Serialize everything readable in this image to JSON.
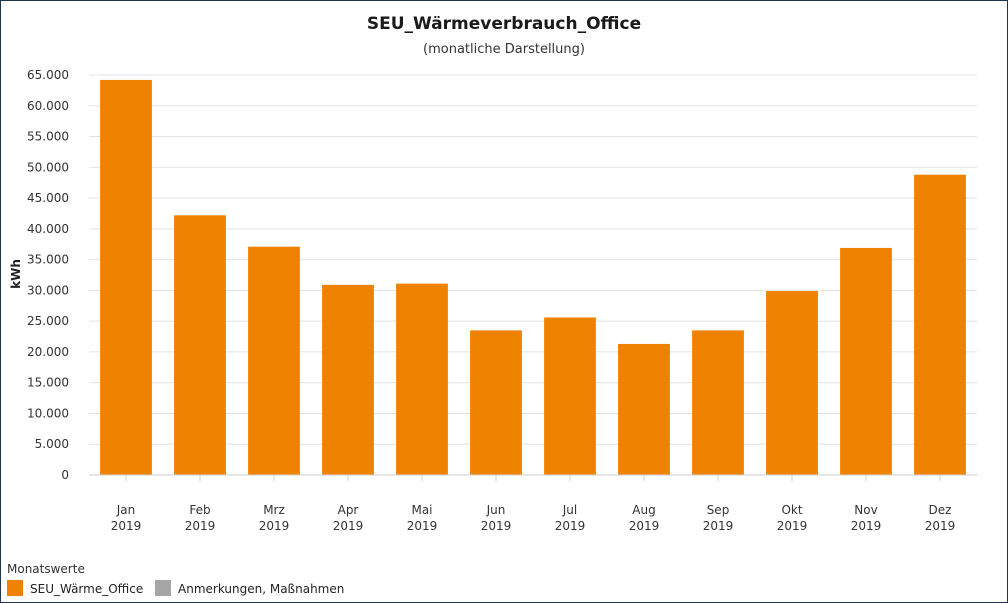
{
  "chart_data": {
    "type": "bar",
    "title": "SEU_Wärmeverbrauch_Office",
    "subtitle": "(monatliche Darstellung)",
    "ylabel": "kWh",
    "xlabel": "",
    "ylim": [
      0,
      65000
    ],
    "ytick_values": [
      0,
      5000,
      10000,
      15000,
      20000,
      25000,
      30000,
      35000,
      40000,
      45000,
      50000,
      55000,
      60000,
      65000
    ],
    "ytick_labels": [
      "0",
      "5.000",
      "10.000",
      "15.000",
      "20.000",
      "25.000",
      "30.000",
      "35.000",
      "40.000",
      "45.000",
      "50.000",
      "55.000",
      "60.000",
      "65.000"
    ],
    "categories": [
      "Jan",
      "Feb",
      "Mrz",
      "Apr",
      "Mai",
      "Jun",
      "Jul",
      "Aug",
      "Sep",
      "Okt",
      "Nov",
      "Dez"
    ],
    "category_year": "2019",
    "grid": true,
    "series": [
      {
        "name": "SEU_Wärme_Office",
        "color": "#ef8200",
        "values": [
          64200,
          42200,
          37100,
          30900,
          31100,
          23500,
          25600,
          21300,
          23500,
          29900,
          36900,
          48800
        ]
      }
    ],
    "legend": {
      "title": "Monatswerte",
      "position": "bottom-left",
      "items": [
        {
          "label": "SEU_Wärme_Office",
          "color": "#ef8200"
        },
        {
          "label": "Anmerkungen, Maßnahmen",
          "color": "#a6a6a6"
        }
      ]
    }
  }
}
